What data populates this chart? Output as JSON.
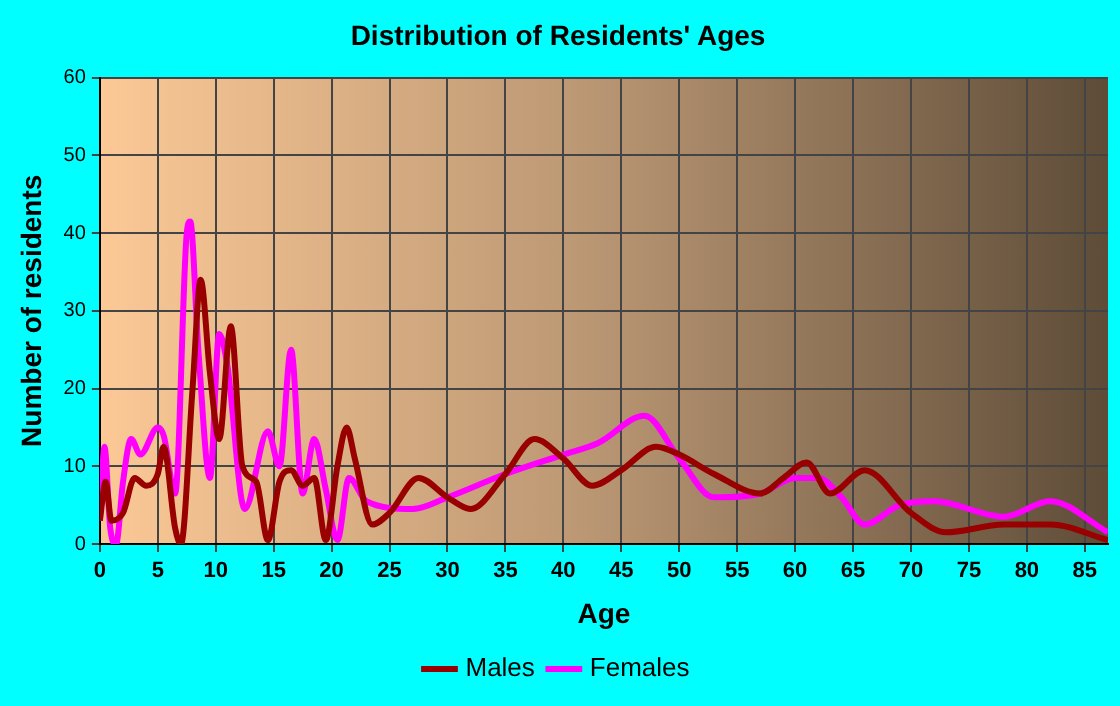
{
  "chart_data": {
    "type": "line",
    "title": "Distribution of Residents' Ages",
    "xlabel": "Age",
    "ylabel": "Number of residents",
    "xlim": [
      0,
      87
    ],
    "xticks": [
      0,
      5,
      10,
      15,
      20,
      25,
      30,
      35,
      40,
      45,
      50,
      55,
      60,
      65,
      70,
      75,
      80,
      85
    ],
    "ylim": [
      0,
      60
    ],
    "yticks": [
      0,
      10,
      20,
      30,
      40,
      50,
      60
    ],
    "grid": true,
    "legend": "bottom",
    "marker": "none",
    "line_style": "solid",
    "series": [
      {
        "name": "Males",
        "color": "#990000",
        "x": [
          0,
          0.5,
          1,
          2,
          3,
          4,
          5,
          5.5,
          6.5,
          7,
          8,
          8.7,
          9.5,
          10.3,
          11.3,
          12.3,
          13.5,
          14.5,
          15.5,
          16.5,
          17.5,
          18.5,
          19.5,
          20.5,
          21.3,
          22,
          23.5,
          25,
          27.5,
          30,
          32,
          35,
          37.5,
          40,
          42.5,
          45,
          48,
          50,
          53,
          57,
          59,
          61,
          63,
          66,
          70,
          73,
          78,
          82,
          87
        ],
        "values": [
          3,
          8,
          3,
          4,
          8.5,
          7.5,
          9,
          12.5,
          2,
          0,
          20,
          34,
          22,
          13.5,
          28,
          10,
          8,
          0.5,
          8,
          9.5,
          7.5,
          8.5,
          0.5,
          10,
          15,
          11,
          2.5,
          4,
          8.5,
          6,
          4.5,
          9,
          13.5,
          11,
          7.5,
          9.5,
          12.5,
          11.5,
          9,
          6.5,
          8.5,
          10.5,
          6.5,
          9.5,
          4,
          1.5,
          2.5,
          2.5,
          0.5
        ]
      },
      {
        "name": "Females",
        "color": "#ff00ff",
        "x": [
          0,
          0.4,
          0.9,
          1.4,
          2,
          2.7,
          3.5,
          5,
          5.5,
          6.5,
          7.5,
          7.8,
          8.5,
          9.5,
          10.3,
          11,
          12.5,
          14.5,
          15.5,
          16.5,
          17.5,
          18.5,
          19.5,
          20.5,
          21.5,
          23,
          27,
          30,
          35,
          40,
          43,
          47,
          50,
          53,
          57,
          60,
          62,
          64,
          66,
          69,
          72,
          78,
          82,
          87
        ],
        "values": [
          3,
          12.5,
          2,
          0,
          8,
          13.5,
          11.5,
          15,
          14,
          6.5,
          40,
          41.5,
          25,
          8.5,
          27,
          23,
          4.5,
          14.5,
          10,
          25,
          6.5,
          13.5,
          7,
          0.5,
          8.5,
          5.5,
          4.5,
          6,
          9,
          11.5,
          13,
          16.5,
          11,
          6,
          6.5,
          8.5,
          8.5,
          6,
          2.5,
          5,
          5.5,
          3.5,
          5.5,
          1.5
        ]
      }
    ]
  }
}
